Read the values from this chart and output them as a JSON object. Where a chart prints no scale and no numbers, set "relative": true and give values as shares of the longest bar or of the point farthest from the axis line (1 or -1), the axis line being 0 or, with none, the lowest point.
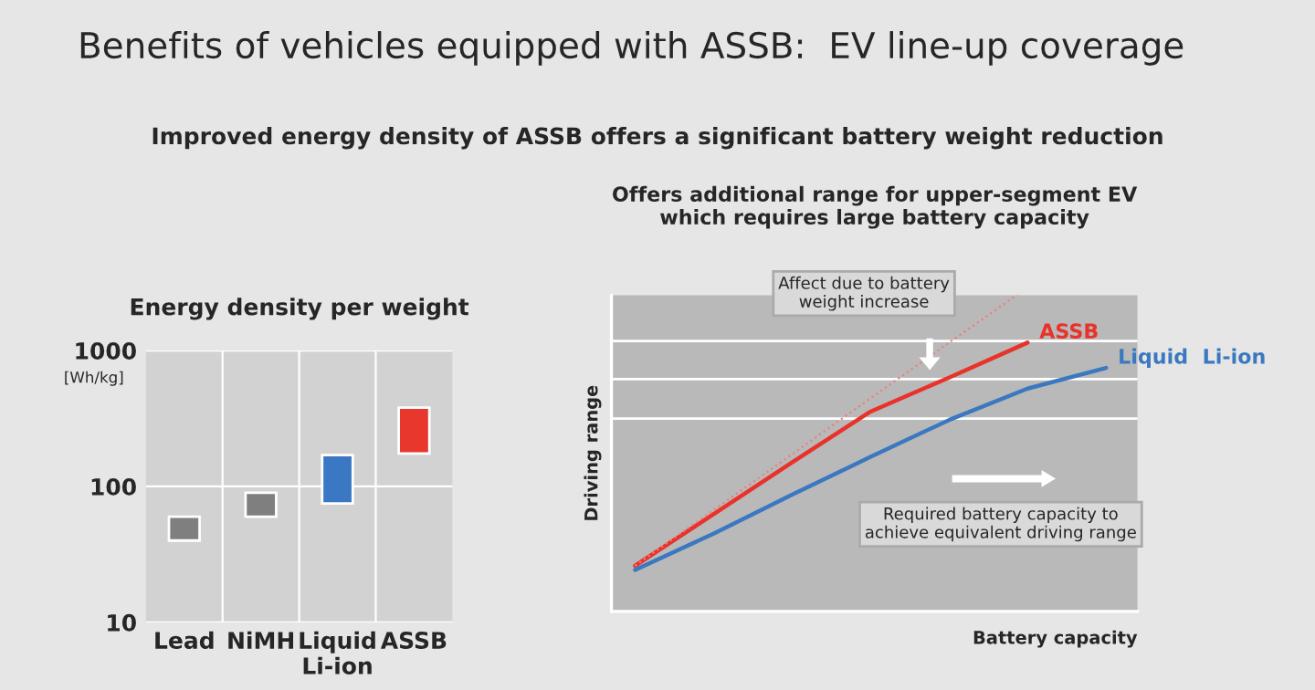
{
  "chart_data": [
    {
      "type": "bar",
      "title": "Energy density per weight",
      "ylabel": "[Wh/kg]",
      "annotations": [
        "Benefits of vehicles equipped with ASSB:  EV line-up coverage",
        "Improved energy density of ASSB offers a significant battery weight reduction"
      ],
      "categories": [
        "Lead",
        "NiMH",
        "Liquid\nLi-ion",
        "ASSB"
      ],
      "base": [
        40,
        60,
        75,
        175
      ],
      "values": [
        20,
        30,
        95,
        205
      ],
      "colors": [
        "#7f7f7f",
        "#7f7f7f",
        "#3a78c4",
        "#e8372c"
      ],
      "log": true,
      "ylim": [
        10,
        1000
      ],
      "yticks": [
        10,
        100,
        1000
      ],
      "grid": "y",
      "legend": false
    },
    {
      "type": "line",
      "relative": true,
      "title": "Offers additional range for upper-segment EV\nwhich requires large battery capacity",
      "xlabel": "Battery capacity",
      "ylabel": "Driving range",
      "tick_labels": false,
      "legend": false,
      "grid": false,
      "marker": "none",
      "annotations": [
        "Affect due to battery\nweight increase",
        "Required battery capacity to\nachieve equivalent driving range"
      ],
      "categories": [
        null,
        null,
        null,
        null,
        null,
        null,
        null
      ],
      "series": [
        {
          "name": "ASSB",
          "color": "#e8322a",
          "values": [
            0.141,
            0.3,
            0.46,
            0.617,
            0.722,
            0.83,
            null
          ]
        },
        {
          "name": "Liquid  Li-ion",
          "color": "#3b78c0",
          "values": [
            0.128,
            0.24,
            0.36,
            0.477,
            0.591,
            0.688,
            0.752
          ]
        },
        {
          "color": "#e88080",
          "line_style": "dotted",
          "values": [
            0.141,
            0.313,
            0.485,
            0.658,
            0.83,
            1.0,
            null
          ]
        }
      ],
      "ref_lines": [
        {
          "axis": "y",
          "value": 0.835,
          "color": "#ffffff"
        },
        {
          "axis": "y",
          "value": 0.717,
          "color": "#ffffff"
        },
        {
          "axis": "y",
          "value": 0.595,
          "color": "#ffffff"
        }
      ]
    }
  ]
}
